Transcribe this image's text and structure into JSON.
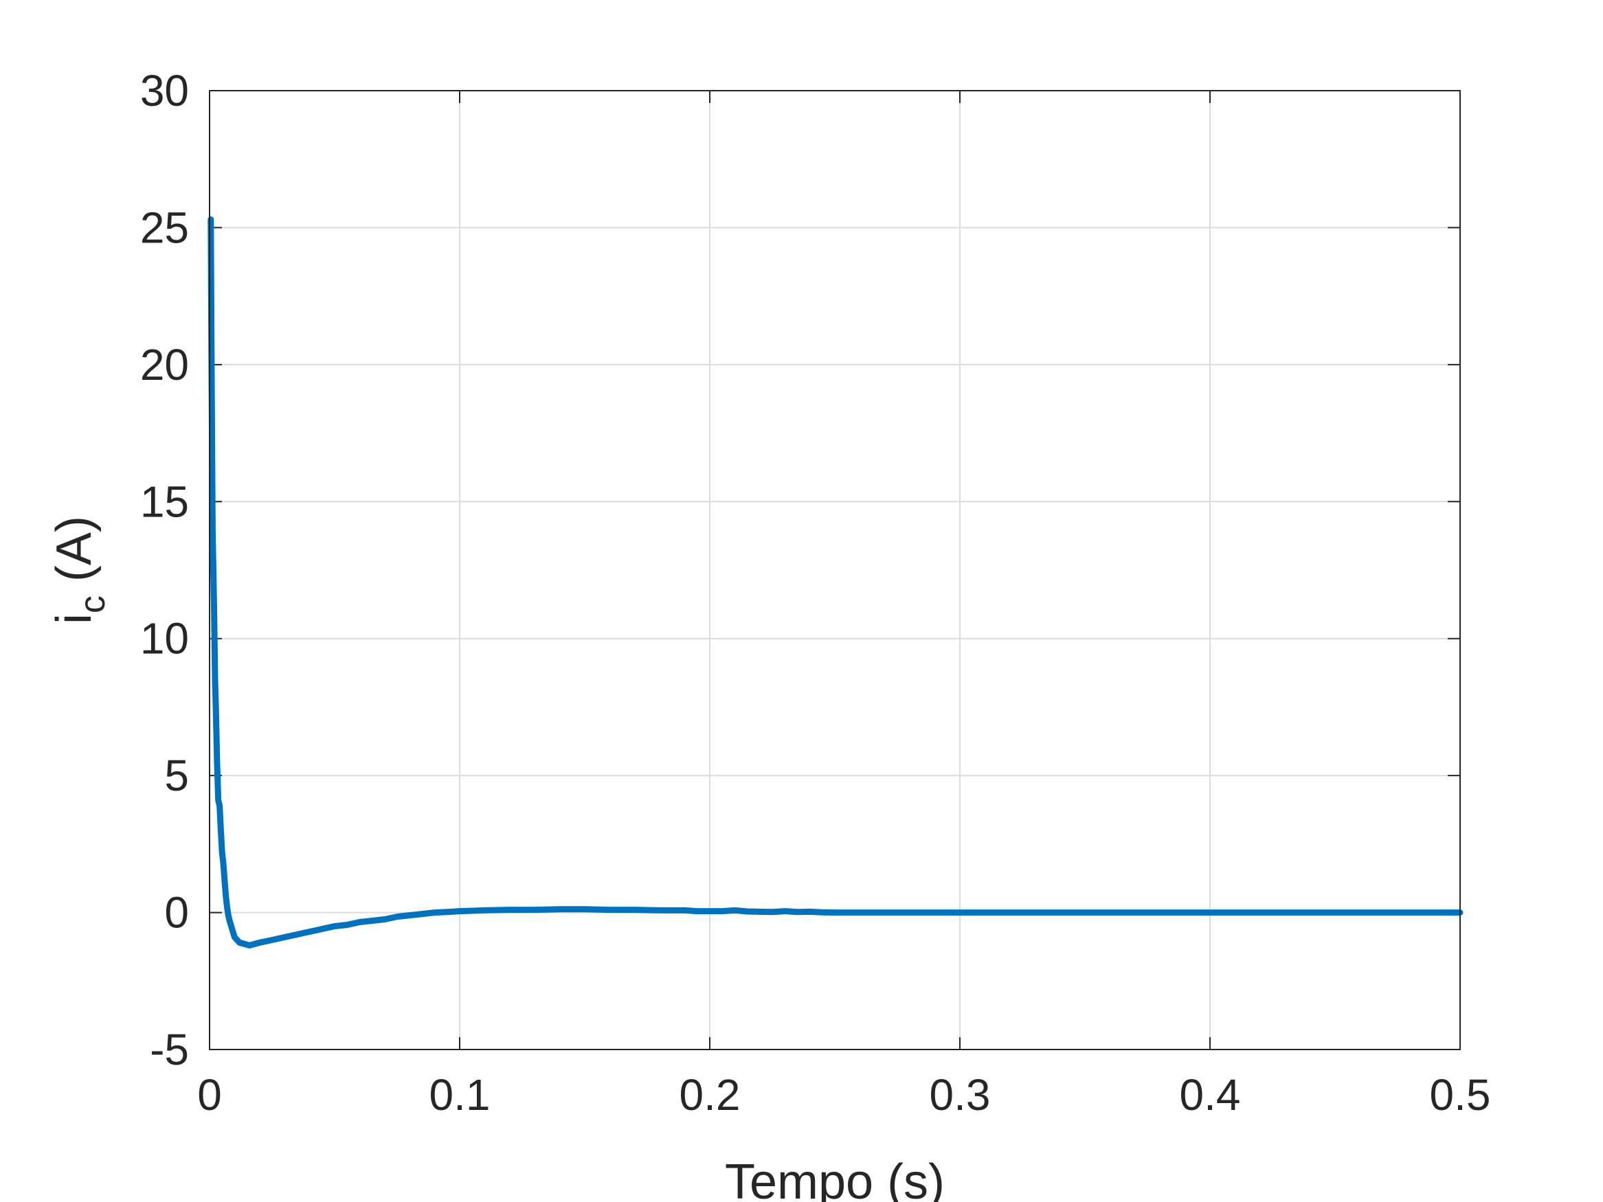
{
  "chart_data": {
    "type": "line",
    "title": "",
    "xlabel": "Tempo (s)",
    "ylabel": {
      "main": "i",
      "subscript": "c",
      "unit": " (A)"
    },
    "xlim": [
      0,
      0.5
    ],
    "ylim": [
      -5,
      30
    ],
    "xticks": [
      0,
      0.1,
      0.2,
      0.3,
      0.4,
      0.5
    ],
    "xtick_labels": [
      "0",
      "0.1",
      "0.2",
      "0.3",
      "0.4",
      "0.5"
    ],
    "yticks": [
      -5,
      0,
      5,
      10,
      15,
      20,
      25,
      30
    ],
    "ytick_labels": [
      "-5",
      "0",
      "5",
      "10",
      "15",
      "20",
      "25",
      "30"
    ],
    "grid": true,
    "line_color": "#0072bd",
    "series": [
      {
        "x": [
          0.0005,
          0.0008,
          0.0012,
          0.0018,
          0.0022,
          0.0025,
          0.003,
          0.0035,
          0.004,
          0.0045,
          0.005,
          0.0055,
          0.006,
          0.0065,
          0.007,
          0.0075,
          0.008,
          0.009,
          0.01,
          0.012,
          0.014,
          0.016,
          0.018,
          0.02,
          0.025,
          0.03,
          0.035,
          0.04,
          0.045,
          0.05,
          0.055,
          0.06,
          0.065,
          0.07,
          0.075,
          0.08,
          0.085,
          0.09,
          0.095,
          0.1,
          0.11,
          0.12,
          0.13,
          0.14,
          0.15,
          0.16,
          0.17,
          0.18,
          0.19,
          0.195,
          0.2,
          0.205,
          0.21,
          0.215,
          0.22,
          0.225,
          0.23,
          0.235,
          0.24,
          0.245,
          0.25,
          0.3,
          0.35,
          0.4,
          0.45,
          0.5
        ],
        "y": [
          25.3,
          20,
          14,
          11,
          8.5,
          7.5,
          5.5,
          4.1,
          3.9,
          3.0,
          2.2,
          1.8,
          1.2,
          0.6,
          0.2,
          -0.1,
          -0.3,
          -0.6,
          -0.9,
          -1.1,
          -1.15,
          -1.2,
          -1.15,
          -1.1,
          -1.0,
          -0.9,
          -0.8,
          -0.7,
          -0.6,
          -0.5,
          -0.45,
          -0.35,
          -0.3,
          -0.25,
          -0.15,
          -0.1,
          -0.05,
          0.0,
          0.02,
          0.05,
          0.08,
          0.1,
          0.1,
          0.12,
          0.12,
          0.1,
          0.1,
          0.08,
          0.08,
          0.05,
          0.05,
          0.05,
          0.08,
          0.04,
          0.03,
          0.02,
          0.05,
          0.02,
          0.03,
          0.01,
          0.0,
          0.0,
          0.0,
          0.0,
          0.0,
          0.0
        ]
      }
    ]
  }
}
